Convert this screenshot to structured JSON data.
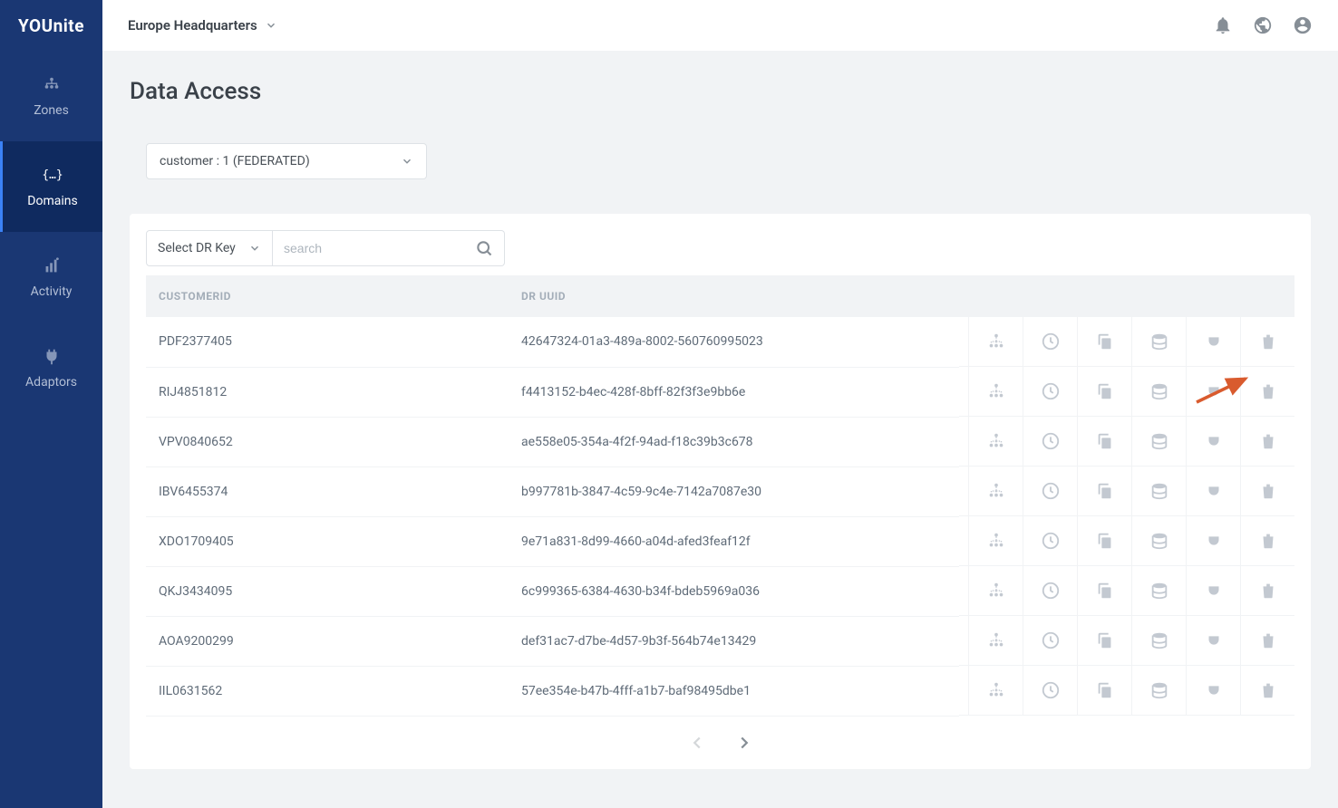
{
  "app": {
    "logo": "YOUnite"
  },
  "sidebar": {
    "items": [
      {
        "label": "Zones",
        "icon": "zones"
      },
      {
        "label": "Domains",
        "icon": "domains",
        "active": true
      },
      {
        "label": "Activity",
        "icon": "activity"
      },
      {
        "label": "Adaptors",
        "icon": "adaptors"
      }
    ]
  },
  "topbar": {
    "hq": "Europe Headquarters"
  },
  "page": {
    "title": "Data Access",
    "entity_select": "customer : 1 (FEDERATED)",
    "dr_key_label": "Select DR Key",
    "search_placeholder": "search"
  },
  "table": {
    "columns": [
      "CUSTOMERID",
      "DR UUID"
    ],
    "rows": [
      {
        "customerid": "PDF2377405",
        "druuid": "42647324-01a3-489a-8002-560760995023"
      },
      {
        "customerid": "RIJ4851812",
        "druuid": "f4413152-b4ec-428f-8bff-82f3f3e9bb6e"
      },
      {
        "customerid": "VPV0840652",
        "druuid": "ae558e05-354a-4f2f-94ad-f18c39b3c678"
      },
      {
        "customerid": "IBV6455374",
        "druuid": "b997781b-3847-4c59-9c4e-7142a7087e30"
      },
      {
        "customerid": "XDO1709405",
        "druuid": "9e71a831-8d99-4660-a04d-afed3feaf12f"
      },
      {
        "customerid": "QKJ3434095",
        "druuid": "6c999365-6384-4630-b34f-bdeb5969a036"
      },
      {
        "customerid": "AOA9200299",
        "druuid": "def31ac7-d7be-4d57-9b3f-564b74e13429"
      },
      {
        "customerid": "IIL0631562",
        "druuid": "57ee354e-b47b-4fff-a1b7-baf98495dbe1"
      }
    ],
    "action_icons": [
      "tree",
      "history",
      "copy",
      "data",
      "plug",
      "delete"
    ]
  },
  "colors": {
    "sidebar_bg": "#1a3773",
    "sidebar_active_bg": "#0f2a5f",
    "page_bg": "#f1f3f5",
    "card_bg": "#ffffff",
    "text_primary": "#3a4149",
    "text_secondary": "#5f6b78",
    "text_muted": "#a3adb8",
    "icon_muted": "#c3c9d1",
    "border": "#dee2e6",
    "arrow": "#d95b2e"
  }
}
